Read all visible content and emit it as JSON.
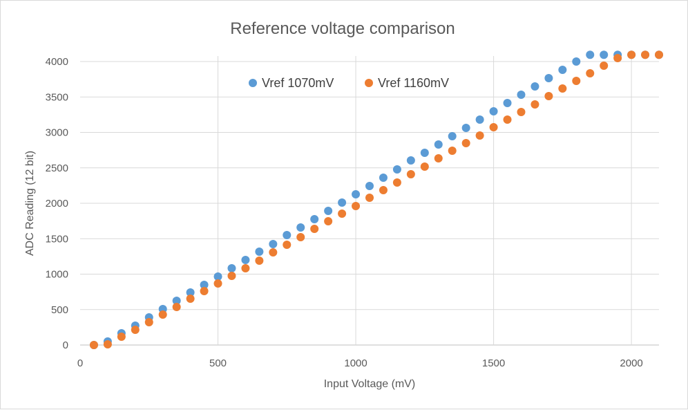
{
  "chart_data": {
    "type": "scatter",
    "title": "Reference voltage comparison",
    "xlabel": "Input Voltage (mV)",
    "ylabel": "ADC Reading (12 bit)",
    "xlim": [
      0,
      2100
    ],
    "ylim": [
      0,
      4000
    ],
    "xticks": [
      0,
      500,
      1000,
      1500,
      2000
    ],
    "yticks": [
      0,
      500,
      1000,
      1500,
      2000,
      2500,
      3000,
      3500,
      4000
    ],
    "grid": true,
    "legend": "top-left inside",
    "x": [
      50,
      100,
      150,
      200,
      250,
      300,
      350,
      400,
      450,
      500,
      550,
      600,
      650,
      700,
      750,
      800,
      850,
      900,
      950,
      1000,
      1050,
      1100,
      1150,
      1200,
      1250,
      1300,
      1350,
      1400,
      1450,
      1500,
      1550,
      1600,
      1650,
      1700,
      1750,
      1800,
      1850,
      1900,
      1950,
      2000,
      2050,
      2100
    ],
    "series": [
      {
        "name": "Vref 1070mV",
        "color": "#5b9bd5",
        "values": [
          0,
          50,
          166,
          273,
          390,
          507,
          624,
          741,
          849,
          966,
          1083,
          1200,
          1317,
          1424,
          1551,
          1659,
          1776,
          1893,
          2010,
          2127,
          2244,
          2361,
          2478,
          2605,
          2712,
          2829,
          2946,
          3063,
          3180,
          3298,
          3415,
          3532,
          3649,
          3766,
          3883,
          4000,
          4095,
          4095,
          4095,
          4095,
          4095,
          4095
        ]
      },
      {
        "name": "Vref 1160mV",
        "color": "#ed7d31",
        "values": [
          0,
          10,
          117,
          215,
          322,
          429,
          537,
          654,
          761,
          868,
          976,
          1083,
          1190,
          1307,
          1415,
          1522,
          1639,
          1746,
          1854,
          1961,
          2078,
          2185,
          2293,
          2410,
          2517,
          2634,
          2741,
          2849,
          2956,
          3073,
          3180,
          3288,
          3395,
          3512,
          3620,
          3727,
          3834,
          3941,
          4049,
          4095,
          4095,
          4095
        ]
      }
    ]
  }
}
